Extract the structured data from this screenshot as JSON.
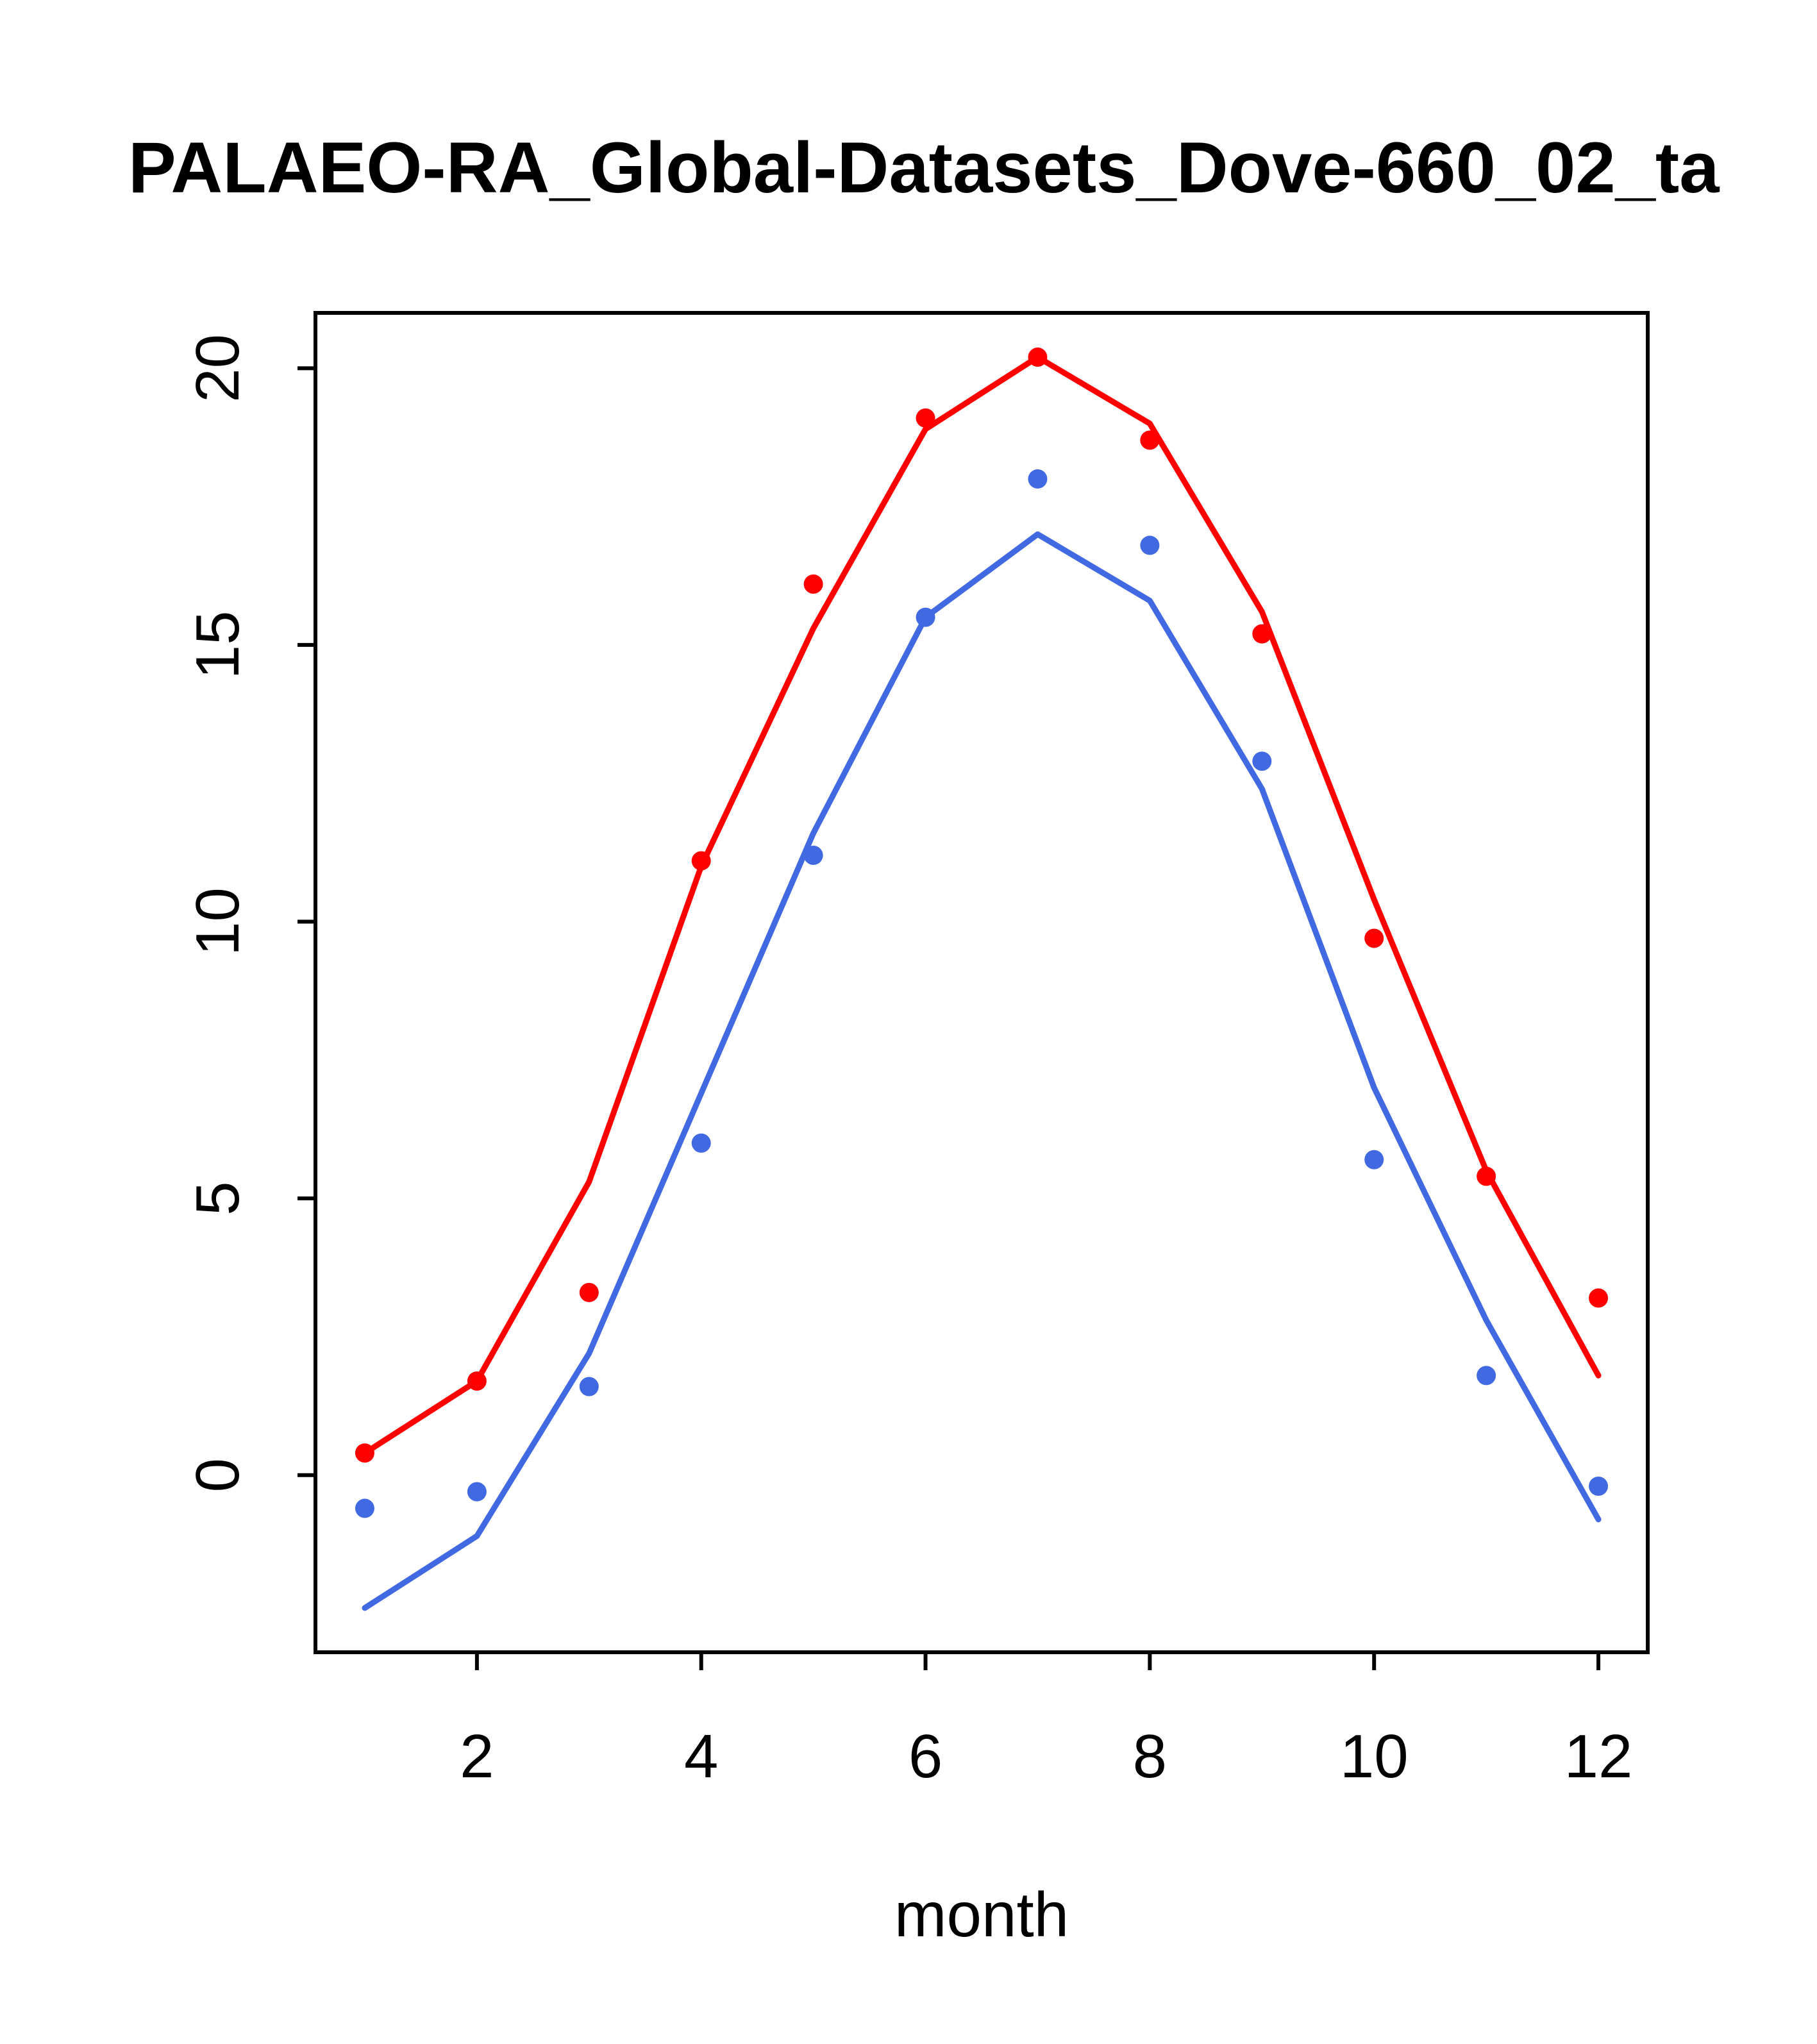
{
  "chart_data": {
    "type": "line",
    "title": "PALAEO-RA_Global-Datasets_Dove-660_02_ta",
    "xlabel": "month",
    "ylabel": "",
    "x": [
      1,
      2,
      3,
      4,
      5,
      6,
      7,
      8,
      9,
      10,
      11,
      12
    ],
    "x_ticks": [
      2,
      4,
      6,
      8,
      10,
      12
    ],
    "y_ticks": [
      0,
      5,
      10,
      15,
      20
    ],
    "xlim": [
      0.56,
      12.44
    ],
    "ylim": [
      -3.2,
      21.0
    ],
    "grid": false,
    "legend": null,
    "colors": {
      "series_red": "#ff0000",
      "series_blue": "#4169e1",
      "axis": "#000000",
      "background": "#ffffff"
    },
    "series": [
      {
        "name": "red-line",
        "style": "line",
        "color": "#ff0000",
        "values": [
          0.4,
          1.7,
          5.3,
          11.0,
          15.3,
          18.9,
          20.2,
          19.0,
          15.6,
          10.4,
          5.5,
          1.8
        ]
      },
      {
        "name": "red-points",
        "style": "points",
        "color": "#ff0000",
        "values": [
          0.4,
          1.7,
          3.3,
          11.1,
          16.1,
          19.1,
          20.2,
          18.7,
          15.2,
          9.7,
          5.4,
          3.2
        ]
      },
      {
        "name": "blue-line",
        "style": "line",
        "color": "#4169e1",
        "values": [
          -2.4,
          -1.1,
          2.2,
          6.9,
          11.6,
          15.5,
          17.0,
          15.8,
          12.4,
          7.0,
          2.8,
          -0.8
        ]
      },
      {
        "name": "blue-points",
        "style": "points",
        "color": "#4169e1",
        "values": [
          -0.6,
          -0.3,
          1.6,
          6.0,
          11.2,
          15.5,
          18.0,
          16.8,
          12.9,
          5.7,
          1.8,
          -0.2
        ]
      }
    ]
  }
}
